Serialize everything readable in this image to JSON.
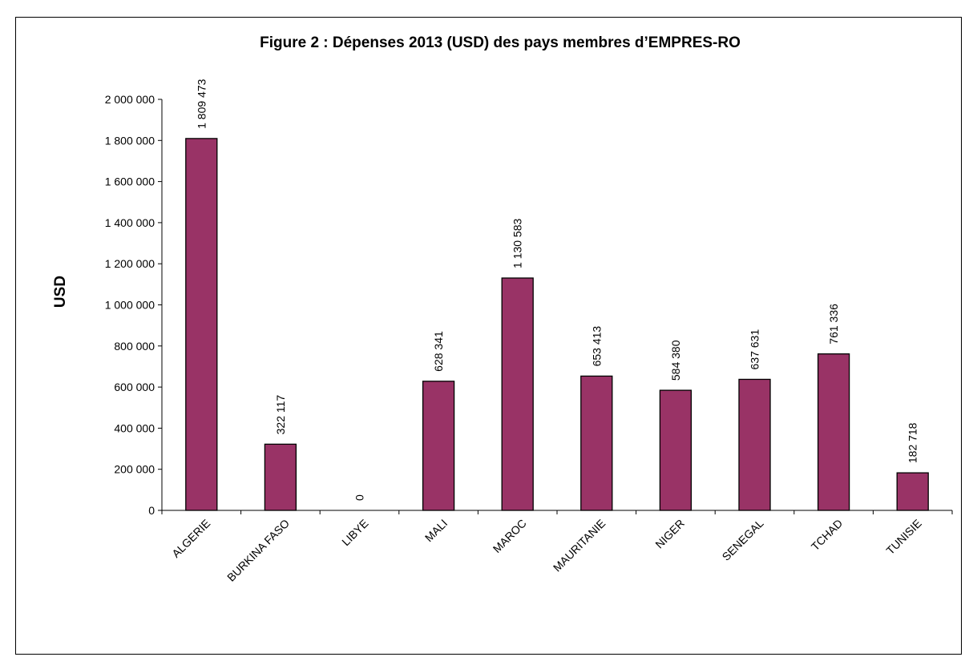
{
  "chart_data": {
    "type": "bar",
    "title": "Figure 2 : Dépenses 2013 (USD) des pays membres d’EMPRES-RO",
    "xlabel": "",
    "ylabel": "USD",
    "categories": [
      "ALGERIE",
      "BURKINA FASO",
      "LIBYE",
      "MALI",
      "MAROC",
      "MAURITANIE",
      "NIGER",
      "SENEGAL",
      "TCHAD",
      "TUNISIE"
    ],
    "values": [
      1809473,
      322117,
      0,
      628341,
      1130583,
      653413,
      584380,
      637631,
      761336,
      182718
    ],
    "value_labels": [
      "1 809 473",
      "322 117",
      "0",
      "628 341",
      "1 130 583",
      "653 413",
      "584 380",
      "637 631",
      "761 336",
      "182 718"
    ],
    "y_ticks": [
      0,
      200000,
      400000,
      600000,
      800000,
      1000000,
      1200000,
      1400000,
      1600000,
      1800000,
      2000000
    ],
    "y_tick_labels": [
      "0",
      "200 000",
      "400 000",
      "600 000",
      "800 000",
      "1 000 000",
      "1 200 000",
      "1 400 000",
      "1 600 000",
      "1 800 000",
      "2 000 000"
    ],
    "ylim": [
      0,
      2000000
    ],
    "grid": false,
    "legend": "none",
    "bar_color": "#993366",
    "bar_edge_color": "#000000"
  }
}
